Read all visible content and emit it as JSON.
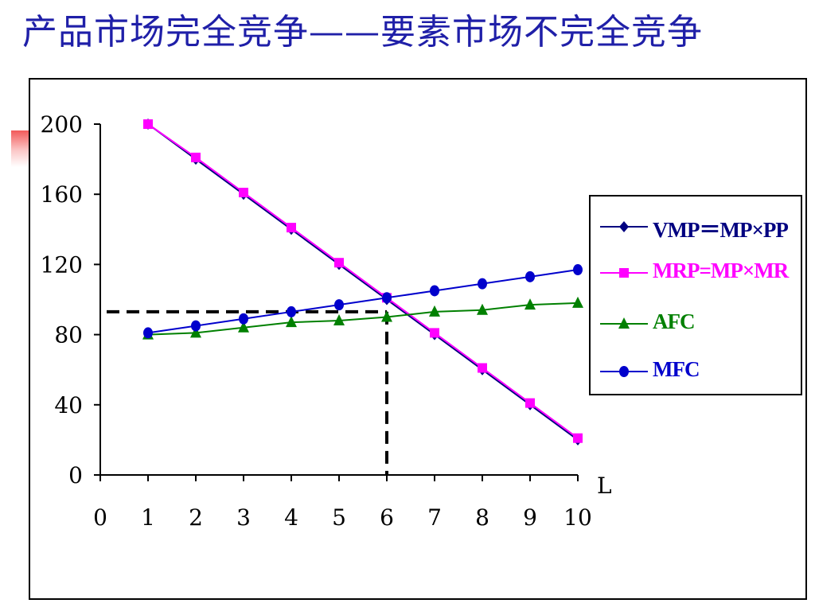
{
  "slide": {
    "title": "产品市场完全竞争——要素市场不完全竞争"
  },
  "chart_data": {
    "type": "line",
    "title": "",
    "xlabel": "L",
    "ylabel": "",
    "x": [
      1,
      2,
      3,
      4,
      5,
      6,
      7,
      8,
      9,
      10
    ],
    "xlim": [
      0,
      10
    ],
    "ylim": [
      0,
      200
    ],
    "xticks": [
      "0",
      "1",
      "2",
      "3",
      "4",
      "5",
      "6",
      "7",
      "8",
      "9",
      "10"
    ],
    "yticks": [
      "0",
      "40",
      "80",
      "120",
      "160",
      "200"
    ],
    "grid": false,
    "legend_position": "right",
    "series": [
      {
        "name": "VMP＝MP×PP",
        "color": "#000080",
        "marker": "diamond",
        "values": [
          200,
          180,
          160,
          140,
          120,
          100,
          80,
          60,
          40,
          20
        ]
      },
      {
        "name": "MRP=MP×MR",
        "color": "#ff00ff",
        "marker": "square",
        "values": [
          200,
          181,
          161,
          141,
          121,
          101,
          81,
          61,
          41,
          21
        ]
      },
      {
        "name": "AFC",
        "color": "#008000",
        "marker": "triangle",
        "values": [
          80,
          81,
          84,
          87,
          88,
          90,
          93,
          94,
          97,
          98
        ]
      },
      {
        "name": "MFC",
        "color": "#0000cc",
        "marker": "circle",
        "values": [
          81,
          85,
          89,
          93,
          97,
          101,
          105,
          109,
          113,
          117
        ]
      }
    ],
    "annotations": [
      {
        "kind": "dashed-reference-lines",
        "x": 6,
        "y": 93,
        "color": "#000000"
      }
    ]
  }
}
